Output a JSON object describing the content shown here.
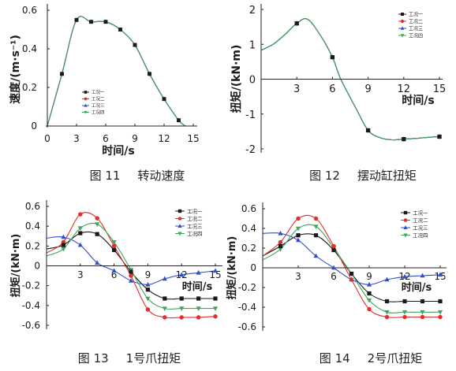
{
  "chart_data": [
    {
      "type": "line",
      "figure_number": "图 11",
      "title": "转动速度",
      "xlabel": "时间/s",
      "ylabel": "速度/(m·s⁻¹)",
      "xlim": [
        0,
        15
      ],
      "ylim": [
        0,
        0.6
      ],
      "xticks": [
        0,
        3,
        6,
        9,
        12,
        15
      ],
      "yticks": [
        0,
        0.2,
        0.4,
        0.6
      ],
      "grid": false,
      "legend_position": "center",
      "x": [
        0,
        1.5,
        3,
        4.5,
        6,
        7.5,
        9,
        10.5,
        12,
        13.5,
        14.2
      ],
      "series": [
        {
          "name": "工况一",
          "color": "#1a1a1a",
          "marker": "square",
          "values": [
            0,
            0.27,
            0.55,
            0.54,
            0.54,
            0.5,
            0.42,
            0.27,
            0.14,
            0.03,
            0
          ]
        },
        {
          "name": "工况二",
          "color": "#e0302b",
          "marker": "circle",
          "values": [
            0,
            0.27,
            0.55,
            0.54,
            0.54,
            0.5,
            0.42,
            0.27,
            0.14,
            0.03,
            0
          ]
        },
        {
          "name": "工况三",
          "color": "#3050c8",
          "marker": "triangle-up",
          "values": [
            0,
            0.27,
            0.55,
            0.54,
            0.54,
            0.5,
            0.42,
            0.27,
            0.14,
            0.03,
            0
          ]
        },
        {
          "name": "工况四",
          "color": "#3fa65e",
          "marker": "triangle-down",
          "values": [
            0,
            0.27,
            0.55,
            0.54,
            0.54,
            0.5,
            0.42,
            0.27,
            0.14,
            0.03,
            0
          ]
        }
      ]
    },
    {
      "type": "line",
      "figure_number": "图 12",
      "title": "摆动缸扭矩",
      "xlabel": "时间/s",
      "ylabel": "扭矩/(kN·m)",
      "xlim": [
        0,
        15
      ],
      "ylim": [
        -2,
        2
      ],
      "xticks": [
        3,
        6,
        9,
        12,
        15
      ],
      "yticks": [
        -2,
        -1,
        0,
        1,
        2
      ],
      "grid": false,
      "legend_position": "top-right",
      "x": [
        0,
        1,
        2,
        3,
        3.9,
        5,
        6,
        6.7,
        8,
        9,
        10,
        11,
        12,
        13,
        14,
        15
      ],
      "series": [
        {
          "name": "工况一",
          "color": "#1a1a1a",
          "marker": "square",
          "values": [
            0.83,
            1.0,
            1.28,
            1.6,
            1.72,
            1.25,
            0.63,
            0,
            -0.85,
            -1.47,
            -1.68,
            -1.74,
            -1.72,
            -1.7,
            -1.67,
            -1.65
          ]
        },
        {
          "name": "工况二",
          "color": "#e0302b",
          "marker": "circle",
          "values": [
            0.83,
            1.0,
            1.28,
            1.6,
            1.72,
            1.25,
            0.63,
            0,
            -0.85,
            -1.47,
            -1.68,
            -1.74,
            -1.72,
            -1.7,
            -1.67,
            -1.65
          ]
        },
        {
          "name": "工况三",
          "color": "#3050c8",
          "marker": "triangle-up",
          "values": [
            0.83,
            1.0,
            1.28,
            1.6,
            1.72,
            1.25,
            0.63,
            0,
            -0.85,
            -1.47,
            -1.68,
            -1.74,
            -1.72,
            -1.7,
            -1.67,
            -1.65
          ]
        },
        {
          "name": "工况四",
          "color": "#3fa65e",
          "marker": "triangle-down",
          "values": [
            0.83,
            1.0,
            1.28,
            1.6,
            1.72,
            1.25,
            0.63,
            0,
            -0.85,
            -1.47,
            -1.68,
            -1.74,
            -1.72,
            -1.7,
            -1.67,
            -1.65
          ]
        }
      ]
    },
    {
      "type": "line",
      "figure_number": "图 13",
      "title": "1号爪扭矩",
      "xlabel": "时间/s",
      "ylabel": "扭矩/(kN·m)",
      "xlim": [
        0,
        15
      ],
      "ylim": [
        -0.6,
        0.6
      ],
      "xticks": [
        3,
        6,
        9,
        12,
        15
      ],
      "yticks": [
        -0.6,
        -0.4,
        -0.2,
        0,
        0.2,
        0.4,
        0.6
      ],
      "grid": false,
      "legend_position": "top-right",
      "x": [
        0,
        1.5,
        3,
        4.5,
        6,
        7.5,
        9,
        10.5,
        12,
        13.5,
        15
      ],
      "series": [
        {
          "name": "工况一",
          "color": "#1a1a1a",
          "marker": "square",
          "values": [
            0.17,
            0.21,
            0.33,
            0.32,
            0.16,
            -0.06,
            -0.24,
            -0.33,
            -0.33,
            -0.33,
            -0.33
          ]
        },
        {
          "name": "工况二",
          "color": "#e0302b",
          "marker": "circle",
          "values": [
            0.13,
            0.24,
            0.52,
            0.48,
            0.2,
            -0.1,
            -0.44,
            -0.52,
            -0.52,
            -0.52,
            -0.51
          ]
        },
        {
          "name": "工况三",
          "color": "#3050c8",
          "marker": "triangle-up",
          "values": [
            0.28,
            0.29,
            0.21,
            0.03,
            -0.05,
            -0.15,
            -0.19,
            -0.13,
            -0.09,
            -0.07,
            -0.05
          ]
        },
        {
          "name": "工况四",
          "color": "#3fa65e",
          "marker": "triangle-down",
          "values": [
            0.1,
            0.17,
            0.38,
            0.42,
            0.24,
            -0.04,
            -0.33,
            -0.43,
            -0.43,
            -0.43,
            -0.43
          ]
        }
      ]
    },
    {
      "type": "line",
      "figure_number": "图 14",
      "title": "2号爪扭矩",
      "xlabel": "时间/s",
      "ylabel": "扭矩/(kN·m)",
      "xlim": [
        0,
        15
      ],
      "ylim": [
        -0.6,
        0.6
      ],
      "xticks": [
        3,
        6,
        9,
        12,
        15
      ],
      "yticks": [
        -0.6,
        -0.4,
        -0.2,
        0,
        0.2,
        0.4,
        0.6
      ],
      "grid": false,
      "legend_position": "top-right",
      "x": [
        0,
        1.5,
        3,
        4.5,
        6,
        7.5,
        9,
        10.5,
        12,
        13.5,
        15
      ],
      "series": [
        {
          "name": "工况一",
          "color": "#1a1a1a",
          "marker": "square",
          "values": [
            0.12,
            0.22,
            0.33,
            0.33,
            0.18,
            -0.06,
            -0.26,
            -0.34,
            -0.34,
            -0.34,
            -0.34
          ]
        },
        {
          "name": "工况二",
          "color": "#e0302b",
          "marker": "circle",
          "values": [
            0.12,
            0.26,
            0.5,
            0.5,
            0.22,
            -0.12,
            -0.42,
            -0.5,
            -0.5,
            -0.5,
            -0.5
          ]
        },
        {
          "name": "工况三",
          "color": "#3050c8",
          "marker": "triangle-up",
          "values": [
            0.35,
            0.35,
            0.28,
            0.12,
            0,
            -0.12,
            -0.17,
            -0.12,
            -0.09,
            -0.08,
            -0.07
          ]
        },
        {
          "name": "工况四",
          "color": "#3fa65e",
          "marker": "triangle-down",
          "values": [
            0.08,
            0.19,
            0.4,
            0.42,
            0.2,
            -0.06,
            -0.33,
            -0.45,
            -0.45,
            -0.45,
            -0.45
          ]
        }
      ]
    }
  ]
}
